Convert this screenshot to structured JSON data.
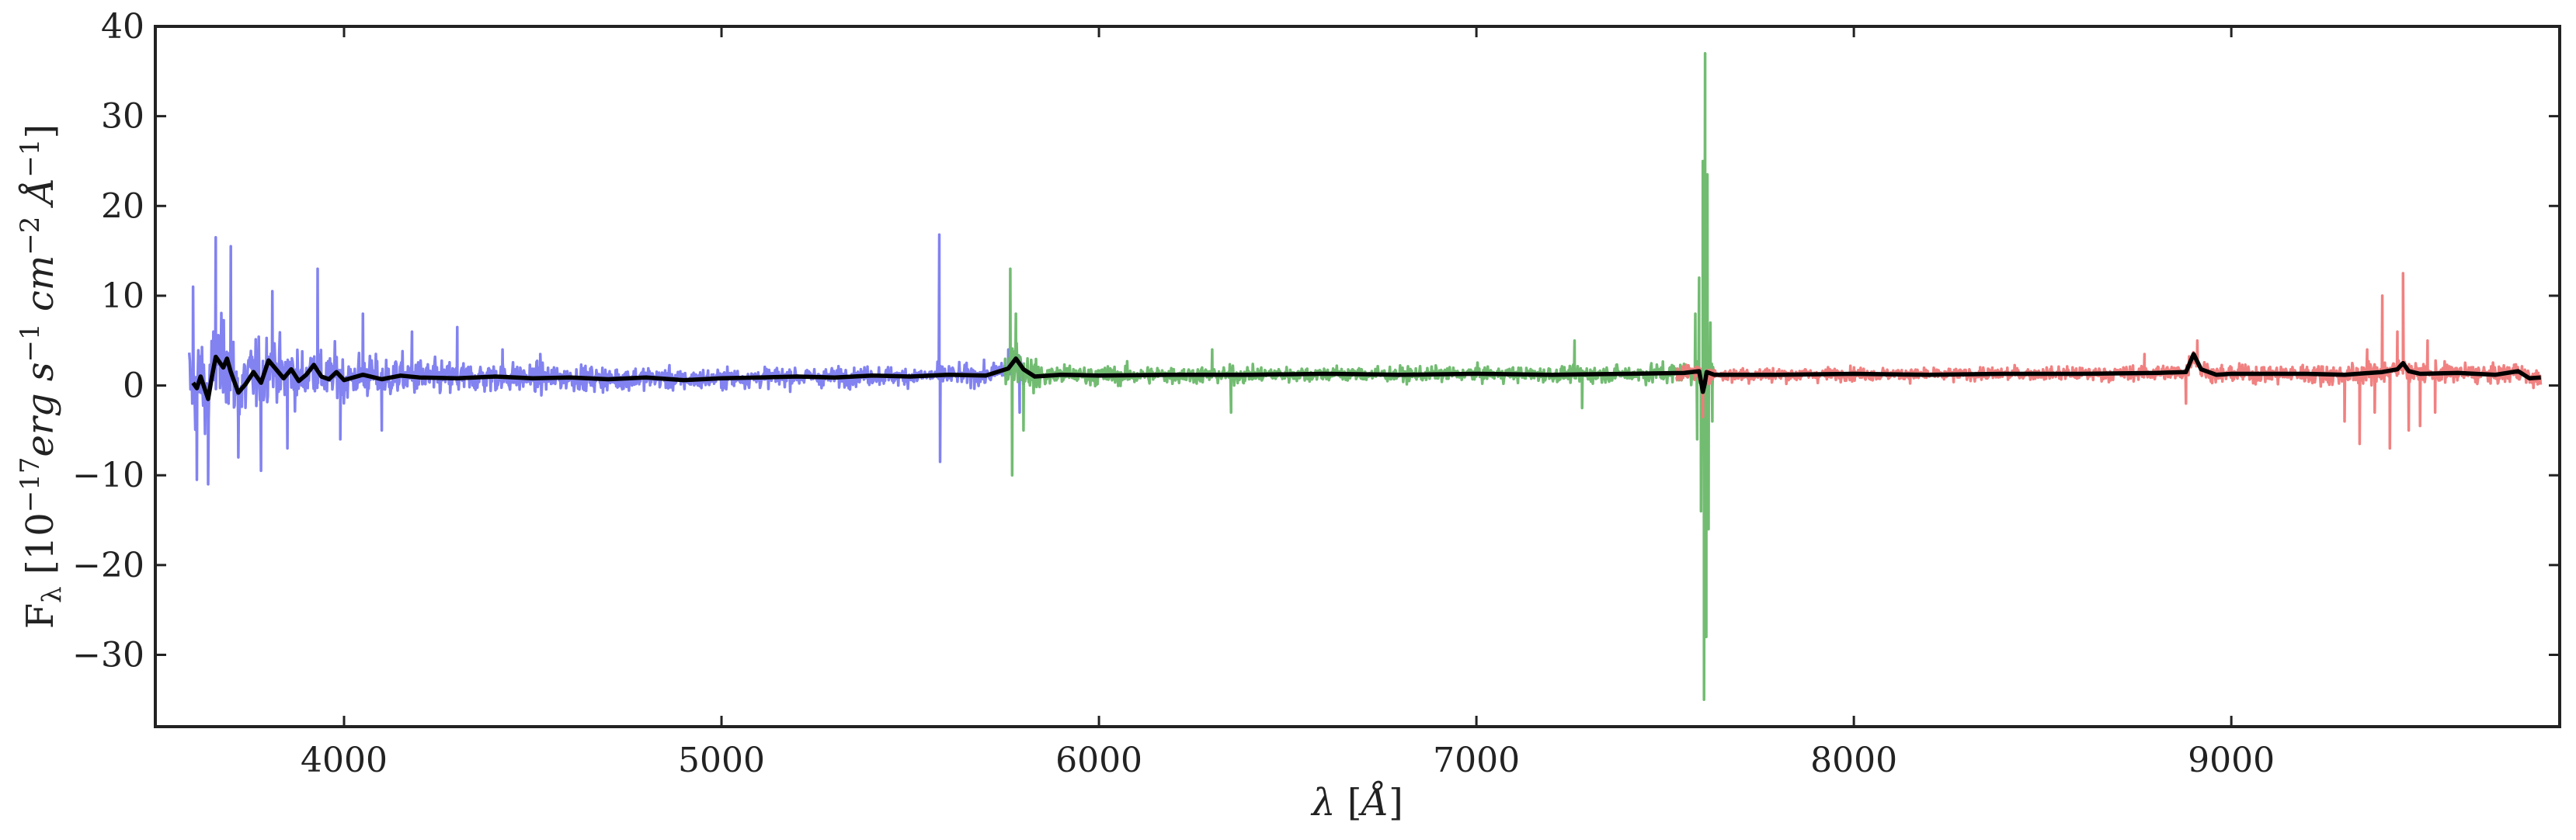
{
  "chart_data": {
    "type": "line",
    "xlabel": "λ [Å]",
    "ylabel": "F_λ [10^−17 erg s^−1 cm^−2 Å^−1]",
    "xlim": [
      3500,
      9870
    ],
    "ylim": [
      -38,
      40
    ],
    "x_ticks": [
      4000,
      5000,
      6000,
      7000,
      8000,
      9000
    ],
    "x_tick_labels": [
      "4000",
      "5000",
      "6000",
      "7000",
      "8000",
      "9000"
    ],
    "y_ticks": [
      -30,
      -20,
      -10,
      0,
      10,
      20,
      30,
      40
    ],
    "y_tick_labels": [
      "−30",
      "−20",
      "−10",
      "0",
      "10",
      "20",
      "30",
      "40"
    ],
    "grid": false,
    "legend": "none",
    "series": [
      {
        "color": "#7b7bf0",
        "x_range": [
          3590,
          5800
        ],
        "noise_envelope": [
          [
            3590,
            6.5
          ],
          [
            3700,
            6.0
          ],
          [
            3800,
            4.5
          ],
          [
            4000,
            3.2
          ],
          [
            4300,
            2.3
          ],
          [
            4600,
            1.8
          ],
          [
            5000,
            1.4
          ],
          [
            5500,
            1.3
          ],
          [
            5800,
            1.5
          ]
        ],
        "peaks": [
          [
            3600,
            11
          ],
          [
            3610,
            -10.5
          ],
          [
            3640,
            -11
          ],
          [
            3660,
            16.5
          ],
          [
            3700,
            15.5
          ],
          [
            3720,
            -8
          ],
          [
            3780,
            -9.5
          ],
          [
            3810,
            10.5
          ],
          [
            3850,
            -7
          ],
          [
            3930,
            13
          ],
          [
            3990,
            -6
          ],
          [
            4050,
            8
          ],
          [
            4100,
            -5
          ],
          [
            4180,
            6
          ],
          [
            4300,
            6.5
          ],
          [
            4420,
            4
          ],
          [
            4520,
            3.5
          ],
          [
            5577,
            16.8
          ],
          [
            5579,
            -8.5
          ],
          [
            5760,
            4
          ],
          [
            5790,
            -3
          ]
        ]
      },
      {
        "color": "#6ab86a",
        "x_range": [
          5750,
          7630
        ],
        "noise_envelope": [
          [
            5750,
            3.0
          ],
          [
            5900,
            1.4
          ],
          [
            6500,
            1.1
          ],
          [
            7000,
            1.0
          ],
          [
            7400,
            1.2
          ],
          [
            7550,
            1.6
          ],
          [
            7630,
            2.5
          ]
        ],
        "peaks": [
          [
            5765,
            13
          ],
          [
            5770,
            -10
          ],
          [
            5780,
            8
          ],
          [
            5800,
            -5
          ],
          [
            6300,
            4
          ],
          [
            6350,
            -3
          ],
          [
            7260,
            5
          ],
          [
            7280,
            -2.5
          ],
          [
            7580,
            8
          ],
          [
            7585,
            -6
          ],
          [
            7590,
            12
          ],
          [
            7595,
            -14
          ],
          [
            7600,
            25
          ],
          [
            7603,
            -35
          ],
          [
            7606,
            37
          ],
          [
            7609,
            -28
          ],
          [
            7612,
            23.5
          ],
          [
            7615,
            -16
          ],
          [
            7620,
            7
          ],
          [
            7625,
            -4
          ]
        ]
      },
      {
        "color": "#f07a7a",
        "x_range": [
          7530,
          9820
        ],
        "noise_envelope": [
          [
            7530,
            1.2
          ],
          [
            8000,
            0.9
          ],
          [
            8500,
            0.9
          ],
          [
            8900,
            1.2
          ],
          [
            9300,
            1.4
          ],
          [
            9500,
            1.4
          ],
          [
            9820,
            1.2
          ]
        ],
        "peaks": [
          [
            7600,
            -3.5
          ],
          [
            8770,
            3.5
          ],
          [
            8880,
            -2
          ],
          [
            8910,
            5
          ],
          [
            9300,
            -4
          ],
          [
            9340,
            -6.5
          ],
          [
            9360,
            4
          ],
          [
            9380,
            -3
          ],
          [
            9400,
            10
          ],
          [
            9420,
            -7
          ],
          [
            9440,
            6
          ],
          [
            9455,
            12.5
          ],
          [
            9470,
            -5
          ],
          [
            9500,
            -4.5
          ],
          [
            9520,
            5
          ],
          [
            9540,
            -3
          ]
        ]
      },
      {
        "color": "#000000",
        "description_points": [
          [
            3600,
            0.3
          ],
          [
            3610,
            -0.3
          ],
          [
            3620,
            1.0
          ],
          [
            3640,
            -1.5
          ],
          [
            3650,
            1.0
          ],
          [
            3660,
            3.2
          ],
          [
            3680,
            2.0
          ],
          [
            3690,
            3.0
          ],
          [
            3700,
            1.5
          ],
          [
            3720,
            -0.8
          ],
          [
            3740,
            0.2
          ],
          [
            3760,
            1.5
          ],
          [
            3780,
            0.3
          ],
          [
            3800,
            2.8
          ],
          [
            3820,
            1.8
          ],
          [
            3840,
            0.8
          ],
          [
            3860,
            1.8
          ],
          [
            3880,
            0.5
          ],
          [
            3900,
            1.2
          ],
          [
            3920,
            2.3
          ],
          [
            3940,
            1.0
          ],
          [
            3960,
            0.7
          ],
          [
            3980,
            1.5
          ],
          [
            4000,
            0.6
          ],
          [
            4050,
            1.2
          ],
          [
            4100,
            0.7
          ],
          [
            4150,
            1.1
          ],
          [
            4200,
            0.9
          ],
          [
            4300,
            0.8
          ],
          [
            4400,
            1.0
          ],
          [
            4500,
            0.8
          ],
          [
            4600,
            0.9
          ],
          [
            4700,
            0.7
          ],
          [
            4800,
            0.9
          ],
          [
            4900,
            0.6
          ],
          [
            5000,
            0.8
          ],
          [
            5100,
            0.9
          ],
          [
            5200,
            1.0
          ],
          [
            5300,
            0.9
          ],
          [
            5400,
            1.1
          ],
          [
            5500,
            1.0
          ],
          [
            5600,
            1.2
          ],
          [
            5700,
            1.1
          ],
          [
            5760,
            1.9
          ],
          [
            5780,
            3.0
          ],
          [
            5800,
            1.8
          ],
          [
            5830,
            1.0
          ],
          [
            5900,
            1.2
          ],
          [
            6000,
            1.1
          ],
          [
            6200,
            1.2
          ],
          [
            6400,
            1.2
          ],
          [
            6600,
            1.3
          ],
          [
            6800,
            1.2
          ],
          [
            7000,
            1.3
          ],
          [
            7200,
            1.2
          ],
          [
            7400,
            1.3
          ],
          [
            7550,
            1.4
          ],
          [
            7590,
            1.6
          ],
          [
            7600,
            -0.7
          ],
          [
            7605,
            0.2
          ],
          [
            7610,
            1.5
          ],
          [
            7630,
            1.2
          ],
          [
            7800,
            1.2
          ],
          [
            8000,
            1.3
          ],
          [
            8200,
            1.2
          ],
          [
            8400,
            1.3
          ],
          [
            8600,
            1.3
          ],
          [
            8800,
            1.4
          ],
          [
            8880,
            1.5
          ],
          [
            8900,
            3.5
          ],
          [
            8920,
            1.8
          ],
          [
            8960,
            1.2
          ],
          [
            9000,
            1.3
          ],
          [
            9200,
            1.3
          ],
          [
            9300,
            1.2
          ],
          [
            9400,
            1.5
          ],
          [
            9440,
            1.8
          ],
          [
            9455,
            2.5
          ],
          [
            9470,
            1.6
          ],
          [
            9500,
            1.3
          ],
          [
            9600,
            1.4
          ],
          [
            9700,
            1.2
          ],
          [
            9760,
            1.6
          ],
          [
            9790,
            0.8
          ],
          [
            9820,
            0.9
          ]
        ]
      }
    ]
  }
}
